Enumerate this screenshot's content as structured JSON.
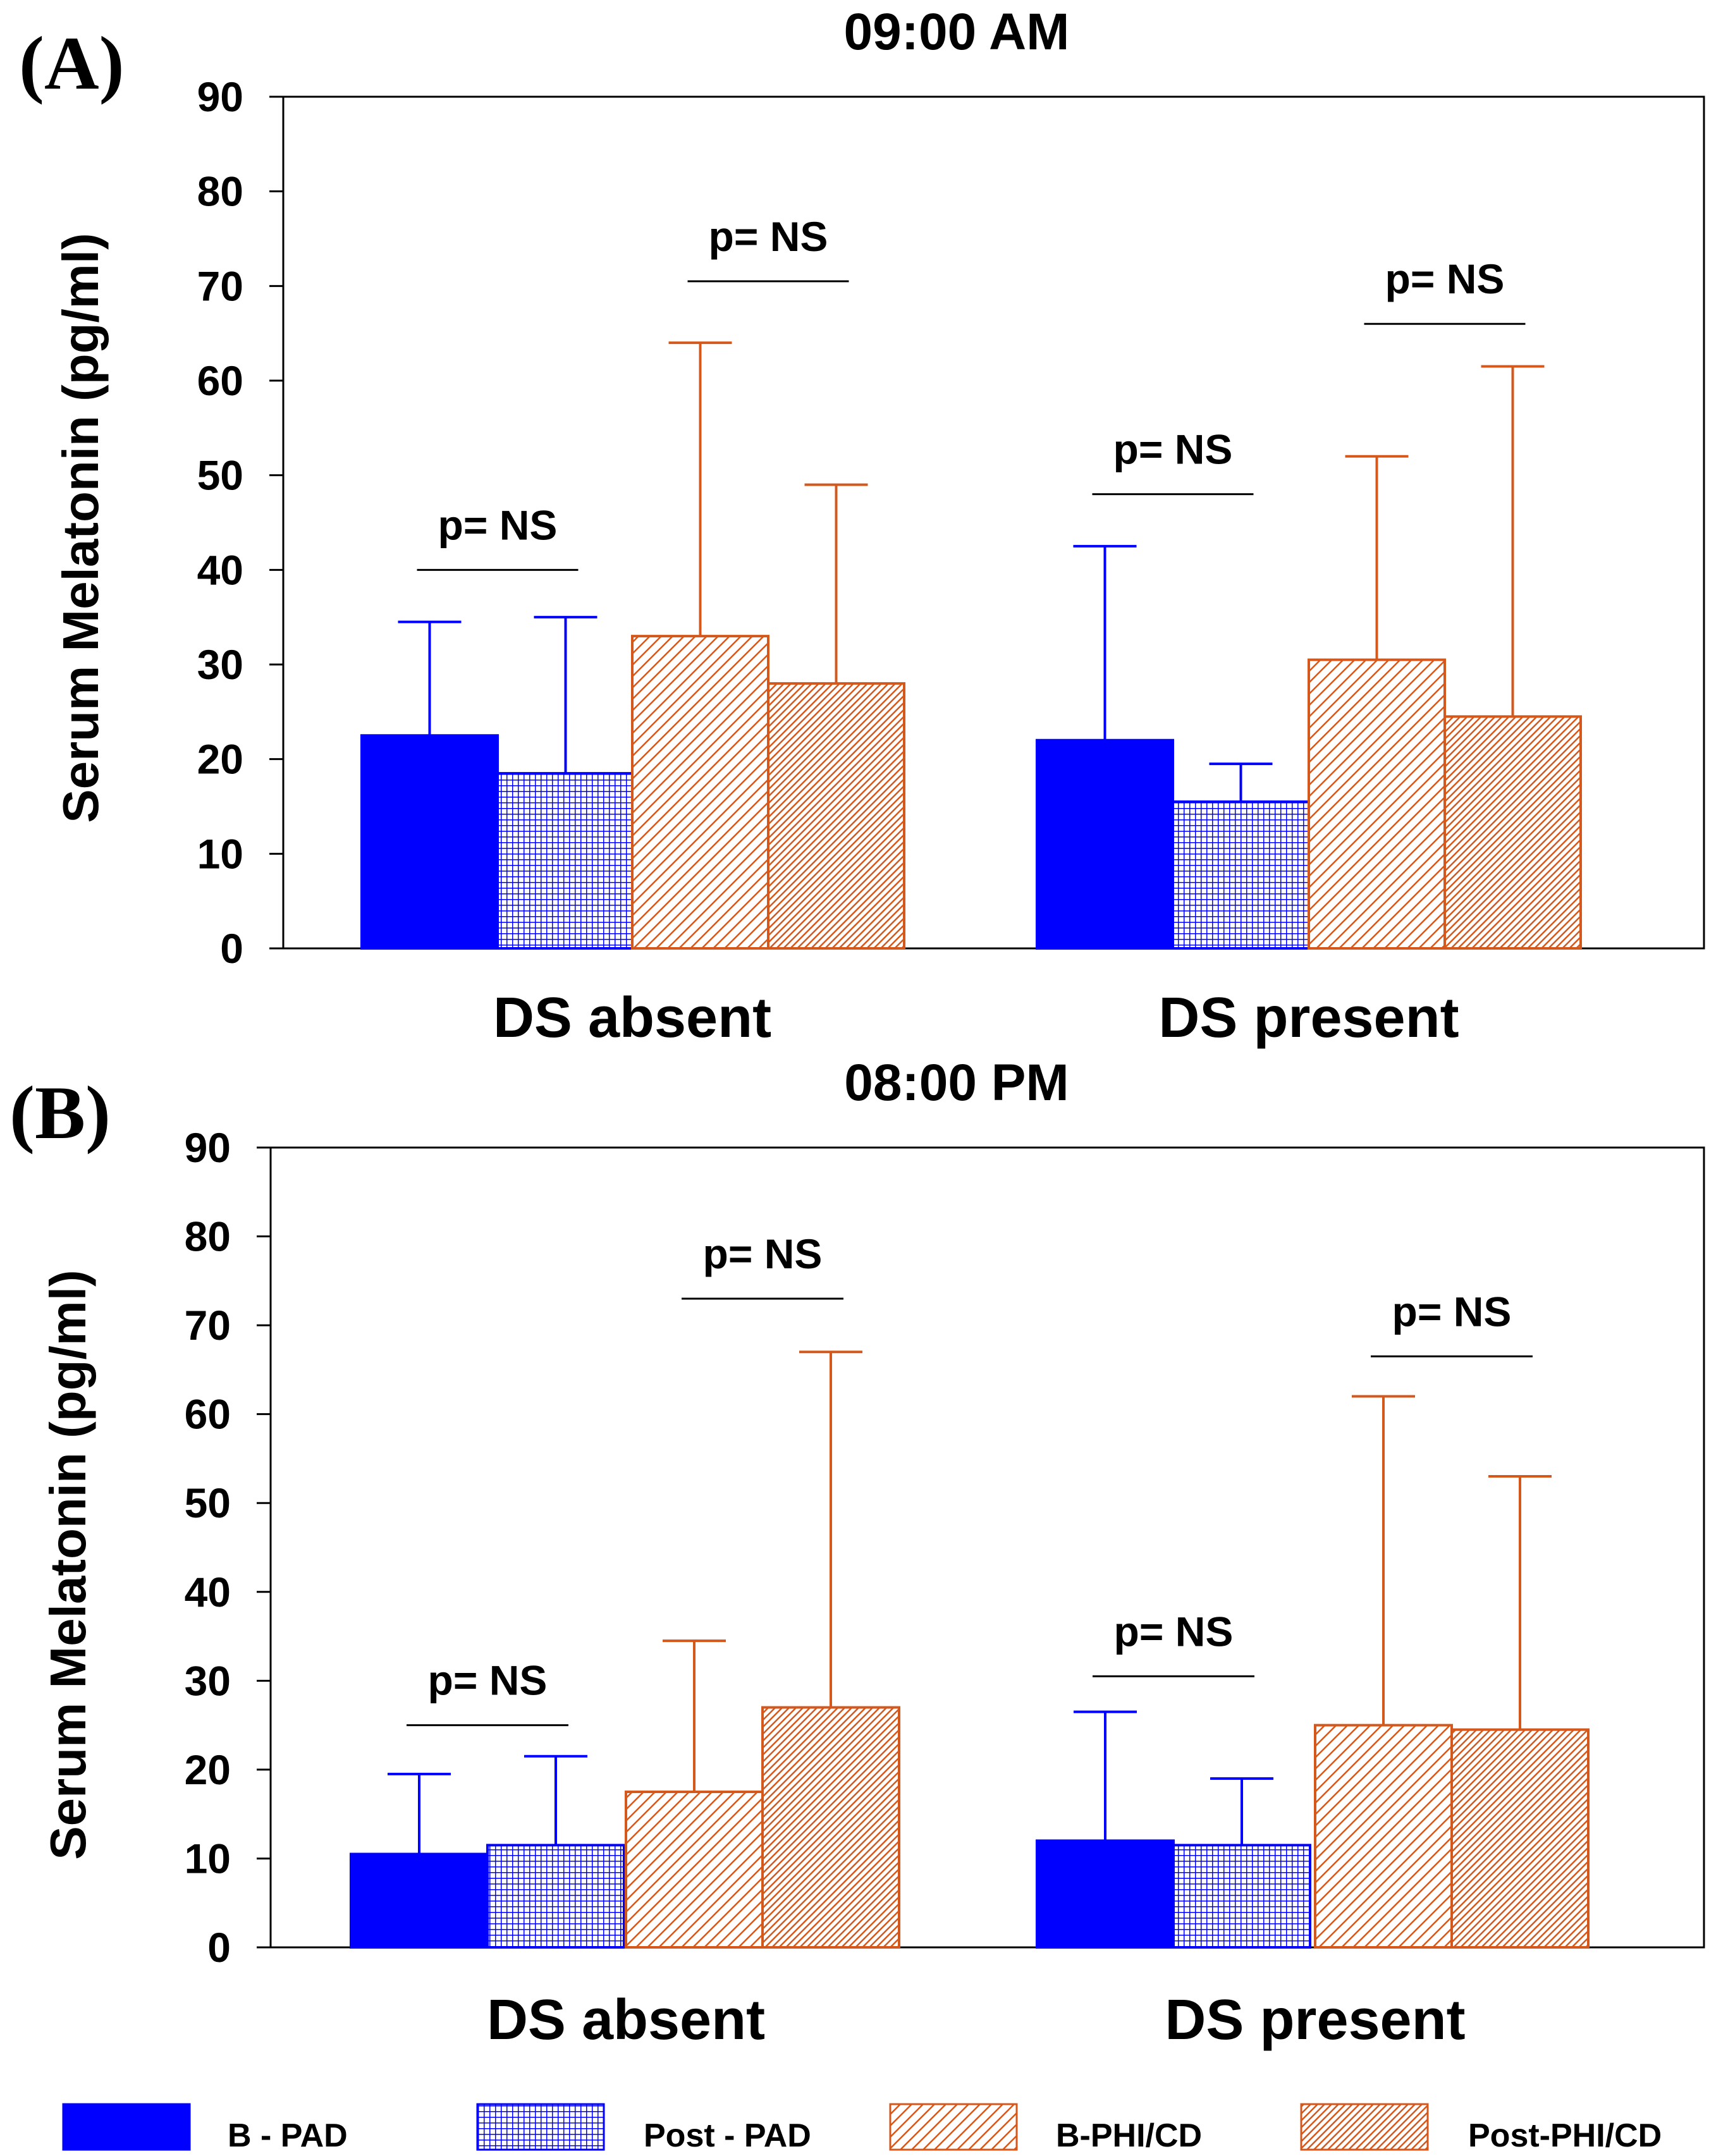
{
  "series_styles": {
    "B - PAD": {
      "fill": "solid",
      "color": "#0000ff"
    },
    "Post - PAD": {
      "fill": "grid",
      "color": "#0000ff"
    },
    "B-PHI/CD": {
      "fill": "hatch-sparse",
      "color": "#d4581c"
    },
    "Post-PHI/CD": {
      "fill": "hatch-dense",
      "color": "#d4581c"
    }
  },
  "legend": [
    "B - PAD",
    "Post - PAD",
    "B-PHI/CD",
    "Post-PHI/CD"
  ],
  "chart_data": [
    {
      "type": "bar",
      "panel": "(A)",
      "title": "09:00 AM",
      "ylabel": "Serum Melatonin (pg/ml)",
      "ylim": [
        0,
        90
      ],
      "yticks": [
        0,
        10,
        20,
        30,
        40,
        50,
        60,
        70,
        80,
        90
      ],
      "categories": [
        "DS absent",
        "DS present"
      ],
      "series": [
        {
          "name": "B - PAD",
          "values": [
            22.5,
            22
          ],
          "errors": [
            12,
            20.5
          ]
        },
        {
          "name": "Post - PAD",
          "values": [
            18.5,
            15.5
          ],
          "errors": [
            16.5,
            4
          ]
        },
        {
          "name": "B-PHI/CD",
          "values": [
            33,
            30.5
          ],
          "errors": [
            31,
            21.5
          ]
        },
        {
          "name": "Post-PHI/CD",
          "values": [
            28,
            24.5
          ],
          "errors": [
            21,
            37
          ]
        }
      ],
      "annotations": [
        {
          "text": "p= NS",
          "category": 0,
          "pair": [
            0,
            1
          ],
          "y": 40
        },
        {
          "text": "p= NS",
          "category": 0,
          "pair": [
            2,
            3
          ],
          "y": 70.5
        },
        {
          "text": "p= NS",
          "category": 1,
          "pair": [
            0,
            1
          ],
          "y": 48
        },
        {
          "text": "p= NS",
          "category": 1,
          "pair": [
            2,
            3
          ],
          "y": 66
        }
      ]
    },
    {
      "type": "bar",
      "panel": "(B)",
      "title": "08:00 PM",
      "ylabel": "Serum Melatonin (pg/ml)",
      "ylim": [
        0,
        90
      ],
      "yticks": [
        0,
        10,
        20,
        30,
        40,
        50,
        60,
        70,
        80,
        90
      ],
      "categories": [
        "DS absent",
        "DS present"
      ],
      "series": [
        {
          "name": "B - PAD",
          "values": [
            10.5,
            12
          ],
          "errors": [
            9,
            14.5
          ]
        },
        {
          "name": "Post - PAD",
          "values": [
            11.5,
            11.5
          ],
          "errors": [
            10,
            7.5
          ]
        },
        {
          "name": "B-PHI/CD",
          "values": [
            17.5,
            25
          ],
          "errors": [
            17,
            37
          ]
        },
        {
          "name": "Post-PHI/CD",
          "values": [
            27,
            24.5
          ],
          "errors": [
            40,
            28.5
          ]
        }
      ],
      "annotations": [
        {
          "text": "p= NS",
          "category": 0,
          "pair": [
            0,
            1
          ],
          "y": 25
        },
        {
          "text": "p= NS",
          "category": 0,
          "pair": [
            2,
            3
          ],
          "y": 73
        },
        {
          "text": "p= NS",
          "category": 1,
          "pair": [
            0,
            1
          ],
          "y": 30.5
        },
        {
          "text": "p= NS",
          "category": 1,
          "pair": [
            2,
            3
          ],
          "y": 66.5
        }
      ]
    }
  ]
}
